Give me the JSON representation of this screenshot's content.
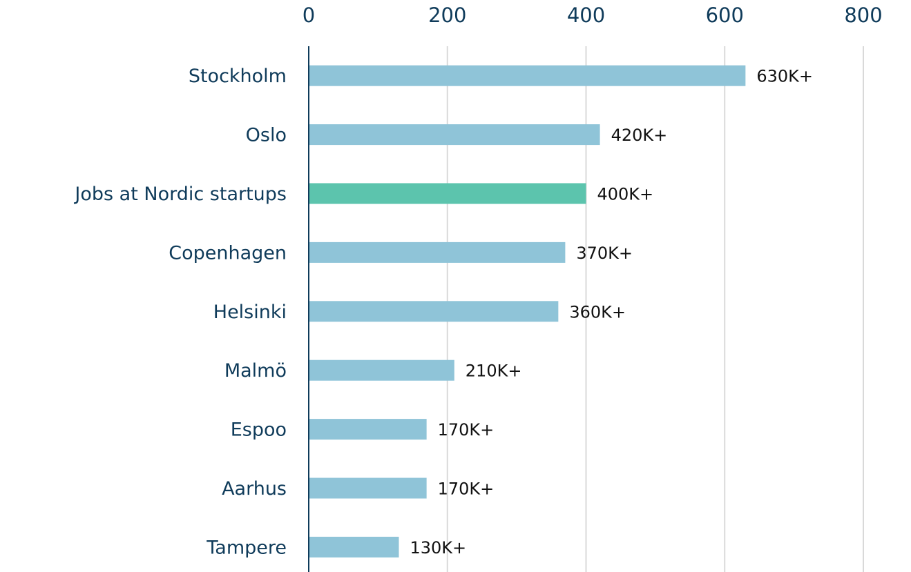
{
  "chart_data": {
    "type": "bar",
    "orientation": "horizontal",
    "categories": [
      "Stockholm",
      "Oslo",
      "Jobs at Nordic startups",
      "Copenhagen",
      "Helsinki",
      "Malmö",
      "Espoo",
      "Aarhus",
      "Tampere"
    ],
    "values": [
      630,
      420,
      400,
      370,
      360,
      210,
      170,
      170,
      130
    ],
    "value_labels": [
      "630K+",
      "420K+",
      "400K+",
      "370K+",
      "360K+",
      "210K+",
      "170K+",
      "170K+",
      "130K+"
    ],
    "colors": [
      "#8fc4d8",
      "#8fc4d8",
      "#5cc4ad",
      "#8fc4d8",
      "#8fc4d8",
      "#8fc4d8",
      "#8fc4d8",
      "#8fc4d8",
      "#8fc4d8"
    ],
    "xlim": [
      0,
      800
    ],
    "xticks": [
      0,
      200,
      400,
      600,
      800
    ],
    "grid": true
  }
}
